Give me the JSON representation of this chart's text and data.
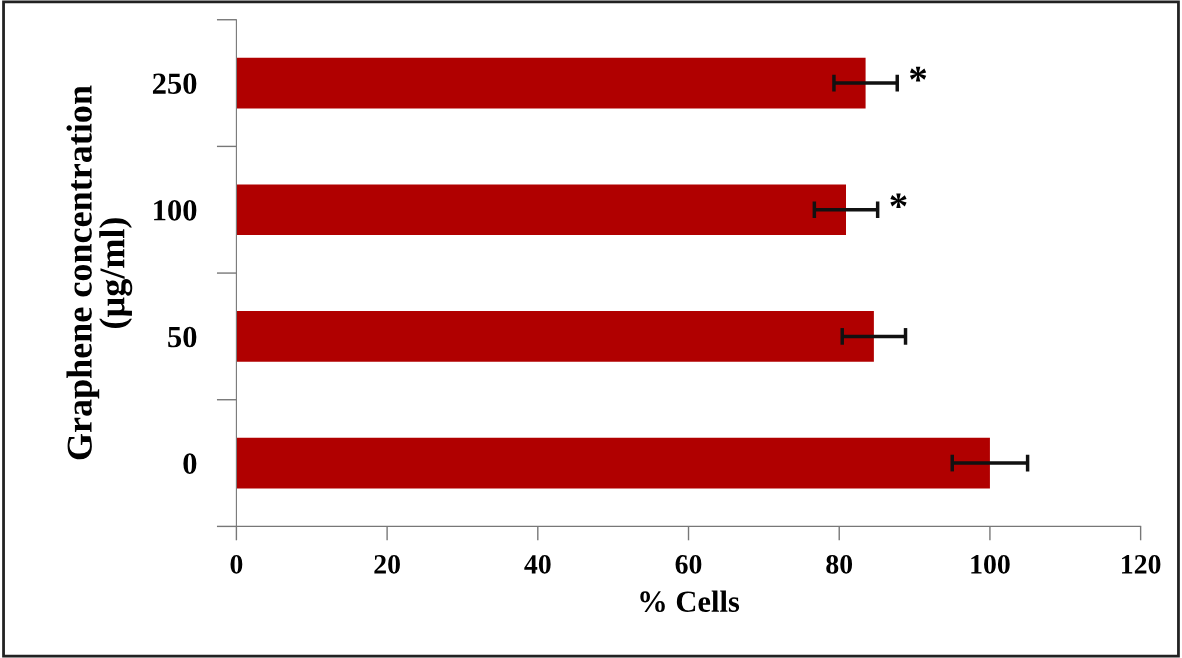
{
  "chart_data": {
    "type": "bar",
    "orientation": "horizontal",
    "xlabel": "% Cells",
    "ylabel": "Graphene concentration\n(µg/ml)",
    "categories": [
      "250",
      "100",
      "50",
      "0"
    ],
    "values": [
      83.5,
      80.9,
      84.6,
      100
    ],
    "errors": [
      4.2,
      4.2,
      4.2,
      5
    ],
    "color": "#b00000",
    "xlim": [
      0,
      120
    ],
    "xticks": [
      0,
      20,
      40,
      60,
      80,
      100,
      120
    ],
    "grid": false,
    "annotations": [
      {
        "text": "*",
        "x": 87.7,
        "y": "250"
      },
      {
        "text": "*",
        "x": 85.1,
        "y": "100"
      }
    ]
  }
}
